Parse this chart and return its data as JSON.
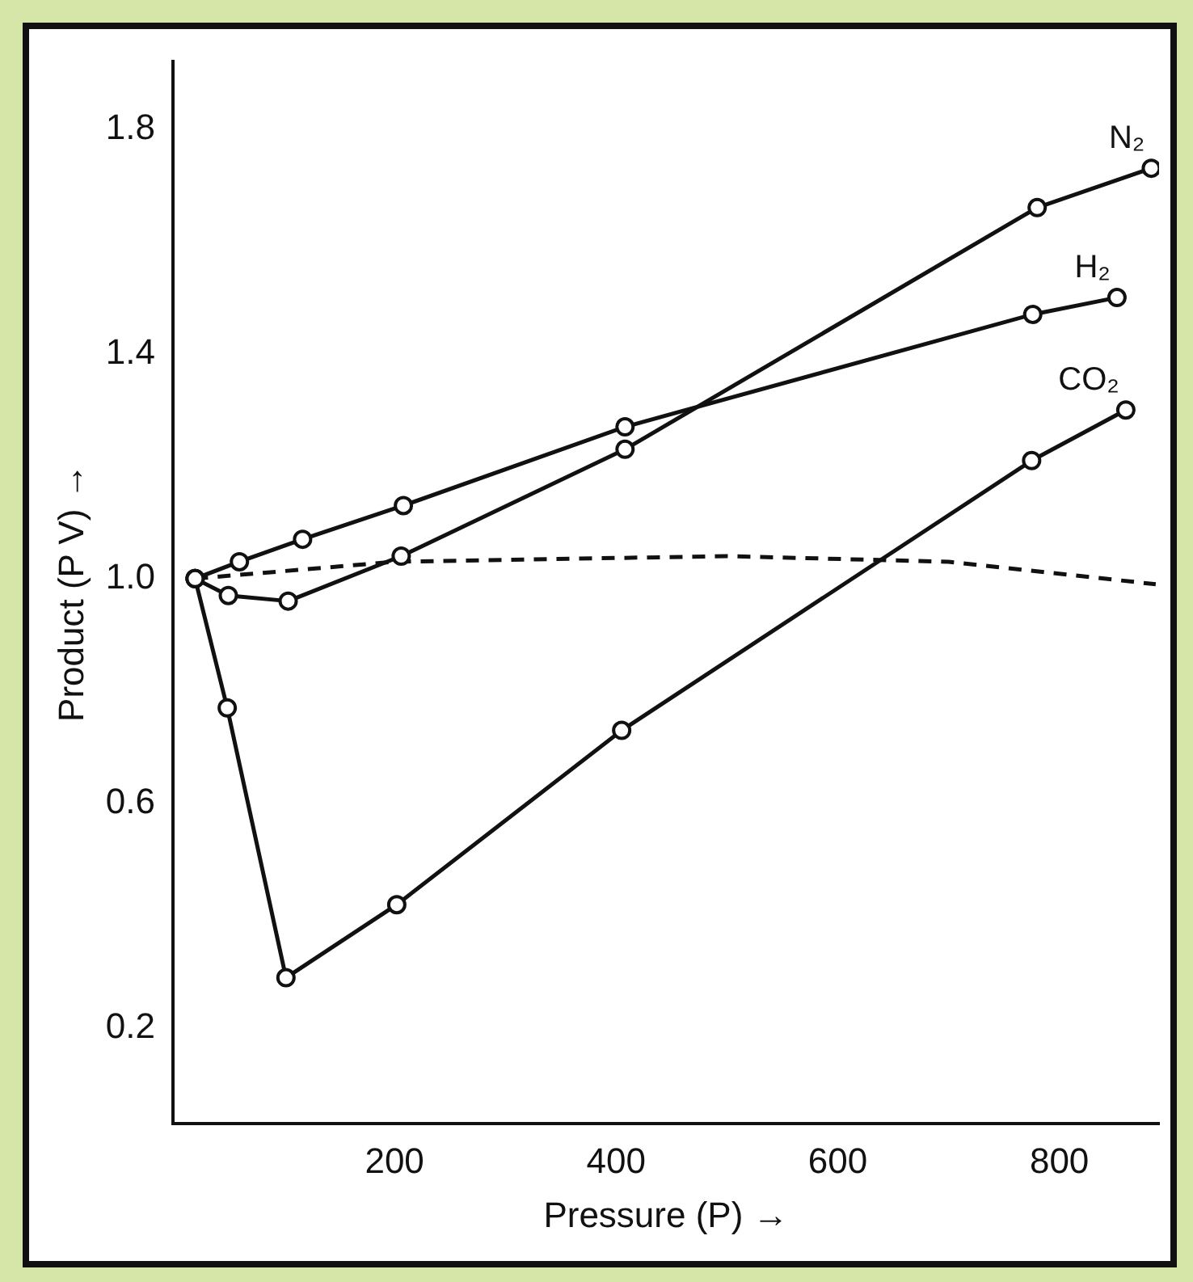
{
  "chart_data": {
    "type": "line",
    "xlabel": "Pressure (P) →",
    "ylabel": "Product (P V) →",
    "xlim": [
      0,
      890
    ],
    "xticks": [
      200,
      400,
      600,
      800
    ],
    "ylim": [
      0.03,
      1.92
    ],
    "yticks": [
      0.2,
      0.6,
      {
        "value": 1.0,
        "label": "1.0"
      },
      1.4,
      1.8
    ],
    "grid": false,
    "legend": false,
    "marker": "circle",
    "line_style": "solid",
    "series": [
      {
        "name": "N₂",
        "color": "#111111",
        "x": [
          20,
          50,
          104,
          206,
          408,
          780,
          883
        ],
        "values": [
          1.0,
          0.97,
          0.96,
          1.04,
          1.23,
          1.66,
          1.73
        ]
      },
      {
        "name": "H₂",
        "color": "#111111",
        "x": [
          20,
          60,
          117,
          208,
          408,
          776,
          852
        ],
        "values": [
          1.0,
          1.03,
          1.07,
          1.13,
          1.27,
          1.47,
          1.5
        ]
      },
      {
        "name": "CO₂",
        "color": "#111111",
        "x": [
          20,
          49,
          102,
          202,
          405,
          775,
          860
        ],
        "values": [
          1.0,
          0.77,
          0.29,
          0.42,
          0.73,
          1.21,
          1.3
        ]
      },
      {
        "color": "#111111",
        "marker": "none",
        "line_style": "dashed",
        "x": [
          20,
          200,
          500,
          700,
          887
        ],
        "values": [
          1.0,
          1.03,
          1.04,
          1.03,
          0.99
        ]
      }
    ]
  }
}
